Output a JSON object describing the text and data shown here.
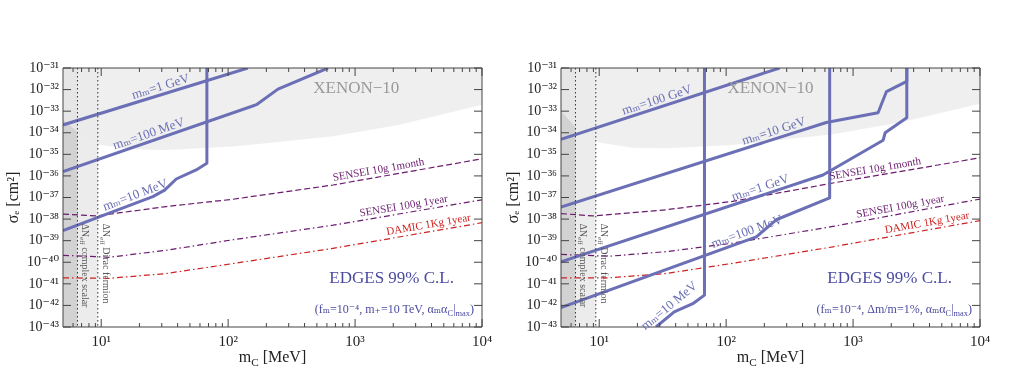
{
  "chart_data": [
    {
      "type": "line",
      "xlabel": "m$_{C}$ [MeV]",
      "ylabel": "σₑ [cm²]",
      "log": "xy",
      "xlim": [
        5,
        10000
      ],
      "ylim": [
        1e-43,
        1e-31
      ],
      "xticks": [
        {
          "value": 6,
          "label": null
        },
        {
          "value": 7,
          "label": null
        },
        {
          "value": 8,
          "label": null
        },
        {
          "value": 9,
          "label": null
        },
        {
          "value": 10,
          "label": "10¹"
        },
        {
          "value": 20,
          "label": null
        },
        {
          "value": 30,
          "label": null
        },
        {
          "value": 40,
          "label": null
        },
        {
          "value": 50,
          "label": null
        },
        {
          "value": 60,
          "label": null
        },
        {
          "value": 70,
          "label": null
        },
        {
          "value": 80,
          "label": null
        },
        {
          "value": 90,
          "label": null
        },
        {
          "value": 100,
          "label": "10²"
        },
        {
          "value": 200,
          "label": null
        },
        {
          "value": 300,
          "label": null
        },
        {
          "value": 400,
          "label": null
        },
        {
          "value": 500,
          "label": null
        },
        {
          "value": 600,
          "label": null
        },
        {
          "value": 700,
          "label": null
        },
        {
          "value": 800,
          "label": null
        },
        {
          "value": 900,
          "label": null
        },
        {
          "value": 1000,
          "label": "10³"
        },
        {
          "value": 2000,
          "label": null
        },
        {
          "value": 3000,
          "label": null
        },
        {
          "value": 4000,
          "label": null
        },
        {
          "value": 5000,
          "label": null
        },
        {
          "value": 6000,
          "label": null
        },
        {
          "value": 7000,
          "label": null
        },
        {
          "value": 8000,
          "label": null
        },
        {
          "value": 9000,
          "label": null
        },
        {
          "value": 10000,
          "label": "10⁴"
        }
      ],
      "yticks": [
        {
          "value": 1e-31,
          "label": "10⁻³¹"
        },
        {
          "value": 1e-32,
          "label": "10⁻³²"
        },
        {
          "value": 1e-33,
          "label": "10⁻³³"
        },
        {
          "value": 1e-34,
          "label": "10⁻³⁴"
        },
        {
          "value": 1e-35,
          "label": "10⁻³⁵"
        },
        {
          "value": 1e-36,
          "label": "10⁻³⁶"
        },
        {
          "value": 1e-37,
          "label": "10⁻³⁷"
        },
        {
          "value": 1e-38,
          "label": "10⁻³⁸"
        },
        {
          "value": 1e-39,
          "label": "10⁻³⁹"
        },
        {
          "value": 1e-40,
          "label": "10⁻⁴⁰"
        },
        {
          "value": 1e-41,
          "label": "10⁻⁴¹"
        },
        {
          "value": 1e-42,
          "label": "10⁻⁴²"
        },
        {
          "value": 1e-43,
          "label": "10⁻⁴³"
        }
      ],
      "series": [
        {
          "type": "area",
          "color": "#ebebeb",
          "x": [
            5,
            6.7,
            9.7,
            17.8,
            32.5,
            109,
            671,
            2200,
            10000,
            10000,
            5
          ],
          "values": [
            4e-34,
            9.5e-35,
            2.8e-35,
            1.7e-35,
            1.6e-35,
            2.3e-35,
            6.8e-35,
            2.3e-34,
            2e-33,
            1e-31,
            1e-31
          ]
        },
        {
          "color": "#6b6fb5",
          "x": [
            5,
            143
          ],
          "values": [
            2.3e-34,
            1e-31
          ]
        },
        {
          "color": "#6b6fb5",
          "x": [
            5,
            167,
            247,
            612
          ],
          "values": [
            1.6e-36,
            2e-33,
            1.05e-32,
            1e-31
          ]
        },
        {
          "color": "#6b6fb5",
          "x": [
            5,
            25.5,
            31.6,
            39,
            56,
            68,
            68
          ],
          "values": [
            2.9e-39,
            1.1e-37,
            2.2e-37,
            7.2e-37,
            1.9e-36,
            3.9e-36,
            1e-31
          ]
        },
        {
          "color": "#6a1b6e",
          "line_style": "dashed",
          "x": [
            5,
            9.1,
            32.5,
            109,
            671,
            10000
          ],
          "values": [
            1.7e-38,
            1.4e-38,
            3.8e-38,
            8.3e-38,
            3.8e-37,
            6.2e-36
          ]
        },
        {
          "color": "#6a1b6e",
          "line_style": "dashdot",
          "x": [
            5,
            11.6,
            32.5,
            109,
            671,
            10000
          ],
          "values": [
            2.1e-40,
            1.7e-40,
            3.6e-40,
            1.1e-39,
            5.2e-39,
            7.8e-38
          ]
        },
        {
          "color": "#cc2222",
          "line_style": "dashdot",
          "x": [
            5,
            11.6,
            32.5,
            109,
            671,
            10000
          ],
          "values": [
            1.9e-41,
            1.8e-41,
            3e-41,
            8.7e-41,
            4.4e-40,
            6.8e-39
          ]
        }
      ],
      "bands": [
        {
          "axis": "x",
          "from": 5,
          "to": 6.5,
          "label": "ΔN$_{eff}$ complex scalar",
          "color": "#d2d2d2"
        },
        {
          "axis": "x",
          "from": 5,
          "to": 9.4,
          "label": "ΔN$_{eff}$ Dirac fermion",
          "color": "#ececec"
        }
      ],
      "ref_lines": [
        {
          "axis": "x",
          "value": 6.5,
          "color": "#333333",
          "line_style": "dotted"
        },
        {
          "axis": "x",
          "value": 9.4,
          "color": "#333333",
          "line_style": "dotted"
        }
      ],
      "annotations": [
        "XENON−10",
        {
          "text": "mₘ=1 GeV",
          "x": 30.6,
          "y": 6.2e-33
        },
        {
          "text": "mₘ=100 MeV",
          "x": 24.8,
          "y": 4.1e-35
        },
        {
          "text": "mₘ=10 MeV",
          "x": 19.5,
          "y": 6e-38
        },
        {
          "text": "SENSEI 10g 1month",
          "x": 1567,
          "y": 9.1e-37
        },
        {
          "text": "SENSEI 100g 1year",
          "x": 2466,
          "y": 1.9e-38
        },
        {
          "text": "DAMIC 1Kg 1year",
          "x": 3882,
          "y": 2.6e-39
        },
        "EDGES 99% C.L.",
        "(fₘ=10⁻⁴, m₊=10 TeV, αₘα$_{C}$|$_{max}$)"
      ]
    },
    {
      "type": "line",
      "xlabel": "m$_{C}$ [MeV]",
      "ylabel": "σₑ [cm²]",
      "log": "xy",
      "xlim": [
        5,
        10000
      ],
      "ylim": [
        1e-43,
        1e-31
      ],
      "xticks": [
        {
          "value": 6,
          "label": null
        },
        {
          "value": 7,
          "label": null
        },
        {
          "value": 8,
          "label": null
        },
        {
          "value": 9,
          "label": null
        },
        {
          "value": 10,
          "label": "10¹"
        },
        {
          "value": 20,
          "label": null
        },
        {
          "value": 30,
          "label": null
        },
        {
          "value": 40,
          "label": null
        },
        {
          "value": 50,
          "label": null
        },
        {
          "value": 60,
          "label": null
        },
        {
          "value": 70,
          "label": null
        },
        {
          "value": 80,
          "label": null
        },
        {
          "value": 90,
          "label": null
        },
        {
          "value": 100,
          "label": "10²"
        },
        {
          "value": 200,
          "label": null
        },
        {
          "value": 300,
          "label": null
        },
        {
          "value": 400,
          "label": null
        },
        {
          "value": 500,
          "label": null
        },
        {
          "value": 600,
          "label": null
        },
        {
          "value": 700,
          "label": null
        },
        {
          "value": 800,
          "label": null
        },
        {
          "value": 900,
          "label": null
        },
        {
          "value": 1000,
          "label": "10³"
        },
        {
          "value": 2000,
          "label": null
        },
        {
          "value": 3000,
          "label": null
        },
        {
          "value": 4000,
          "label": null
        },
        {
          "value": 5000,
          "label": null
        },
        {
          "value": 6000,
          "label": null
        },
        {
          "value": 7000,
          "label": null
        },
        {
          "value": 8000,
          "label": null
        },
        {
          "value": 9000,
          "label": null
        },
        {
          "value": 10000,
          "label": "10⁴"
        }
      ],
      "yticks": [
        {
          "value": 1e-31,
          "label": "10⁻³¹"
        },
        {
          "value": 1e-32,
          "label": "10⁻³²"
        },
        {
          "value": 1e-33,
          "label": "10⁻³³"
        },
        {
          "value": 1e-34,
          "label": "10⁻³⁴"
        },
        {
          "value": 1e-35,
          "label": "10⁻³⁵"
        },
        {
          "value": 1e-36,
          "label": "10⁻³⁶"
        },
        {
          "value": 1e-37,
          "label": "10⁻³⁷"
        },
        {
          "value": 1e-38,
          "label": "10⁻³⁸"
        },
        {
          "value": 1e-39,
          "label": "10⁻³⁹"
        },
        {
          "value": 1e-40,
          "label": "10⁻⁴⁰"
        },
        {
          "value": 1e-41,
          "label": "10⁻⁴¹"
        },
        {
          "value": 1e-42,
          "label": "10⁻⁴²"
        },
        {
          "value": 1e-43,
          "label": "10⁻⁴³"
        }
      ],
      "series": [
        {
          "type": "area",
          "color": "#ebebeb",
          "x": [
            5,
            6.95,
            10,
            18.3,
            33.6,
            112,
            696,
            2333,
            10000,
            10000,
            5
          ],
          "values": [
            1e-33,
            1.2e-34,
            3.5e-35,
            2e-35,
            1.9e-35,
            2.7e-35,
            8.5e-35,
            3e-34,
            2.2e-33,
            1e-31,
            1e-31
          ]
        },
        {
          "color": "#6b6fb5",
          "x": [
            5,
            264
          ],
          "values": [
            4.9e-35,
            1e-31
          ]
        },
        {
          "color": "#6b6fb5",
          "x": [
            5,
            615,
            1574,
            1833,
            2650,
            2650
          ],
          "values": [
            3.6e-38,
            3e-34,
            8.5e-34,
            8.1e-33,
            2.4e-32,
            1e-31
          ]
        },
        {
          "color": "#6b6fb5",
          "x": [
            5,
            579,
            1726,
            1790,
            2650,
            2650
          ],
          "values": [
            1.05e-40,
            1.1e-36,
            4.5e-35,
            1e-34,
            5e-34,
            1e-31
          ]
        },
        {
          "color": "#6b6fb5",
          "x": [
            5,
            173,
            248,
            654,
            654
          ],
          "values": [
            7.9e-43,
            1.5e-39,
            9.3e-39,
            9.5e-38,
            1e-31
          ]
        },
        {
          "color": "#6b6fb5",
          "x": [
            28,
            39,
            54.6,
            67.5,
            67.5
          ],
          "values": [
            1e-43,
            5e-43,
            1.2e-42,
            3e-42,
            1e-31
          ]
        },
        {
          "color": "#6a1b6e",
          "line_style": "dashed",
          "x": [
            5,
            8.9,
            33.6,
            112,
            696,
            10000
          ],
          "values": [
            1.8e-38,
            1.4e-38,
            2.7e-38,
            6.6e-38,
            4.7e-37,
            6.9e-36
          ]
        },
        {
          "color": "#6a1b6e",
          "line_style": "dashdot",
          "x": [
            5,
            12,
            33.6,
            112,
            696,
            10000
          ],
          "values": [
            2.3e-40,
            1.9e-40,
            3.1e-40,
            7.6e-40,
            4.6e-39,
            8.5e-38
          ]
        },
        {
          "color": "#cc2222",
          "line_style": "dashdot",
          "x": [
            5,
            12,
            33.6,
            112,
            696,
            10000
          ],
          "values": [
            1.9e-41,
            1.9e-41,
            3e-41,
            8.9e-41,
            5.2e-40,
            8.5e-39
          ]
        }
      ],
      "bands": [
        {
          "axis": "x",
          "from": 5,
          "to": 6.5,
          "label": "ΔN$_{eff}$ complex scalar",
          "color": "#d2d2d2"
        },
        {
          "axis": "x",
          "from": 5,
          "to": 9.4,
          "label": "ΔN$_{eff}$ Dirac fermion",
          "color": "#ececec"
        }
      ],
      "ref_lines": [
        {
          "axis": "x",
          "value": 6.5,
          "color": "#333333",
          "line_style": "dotted"
        },
        {
          "axis": "x",
          "value": 9.4,
          "color": "#333333",
          "line_style": "dotted"
        }
      ],
      "annotations": [
        "XENON−10",
        {
          "text": "mₘ=100 GeV",
          "x": 29.8,
          "y": 1.5e-33
        },
        {
          "text": "mₘ=10 GeV",
          "x": 248,
          "y": 5.4e-35
        },
        {
          "text": "mₘ=1 GeV",
          "x": 195,
          "y": 1.3e-37
        },
        {
          "text": "mₘ=100 MeV",
          "x": 153,
          "y": 1.2e-39
        },
        {
          "text": "mₘ=10 MeV",
          "x": 39,
          "y": 5e-43
        },
        {
          "text": "SENSEI 10g 1month",
          "x": 1528,
          "y": 1e-36
        },
        {
          "text": "SENSEI 100g 1year",
          "x": 2410,
          "y": 1.8e-38
        },
        {
          "text": "DAMIC 1Kg 1year",
          "x": 3908,
          "y": 3.2e-39
        },
        "EDGES 99% C.L.",
        "(fₘ=10⁻⁴, Δm/m=1%, αₘα$_{C}$|$_{max}$)"
      ]
    }
  ]
}
